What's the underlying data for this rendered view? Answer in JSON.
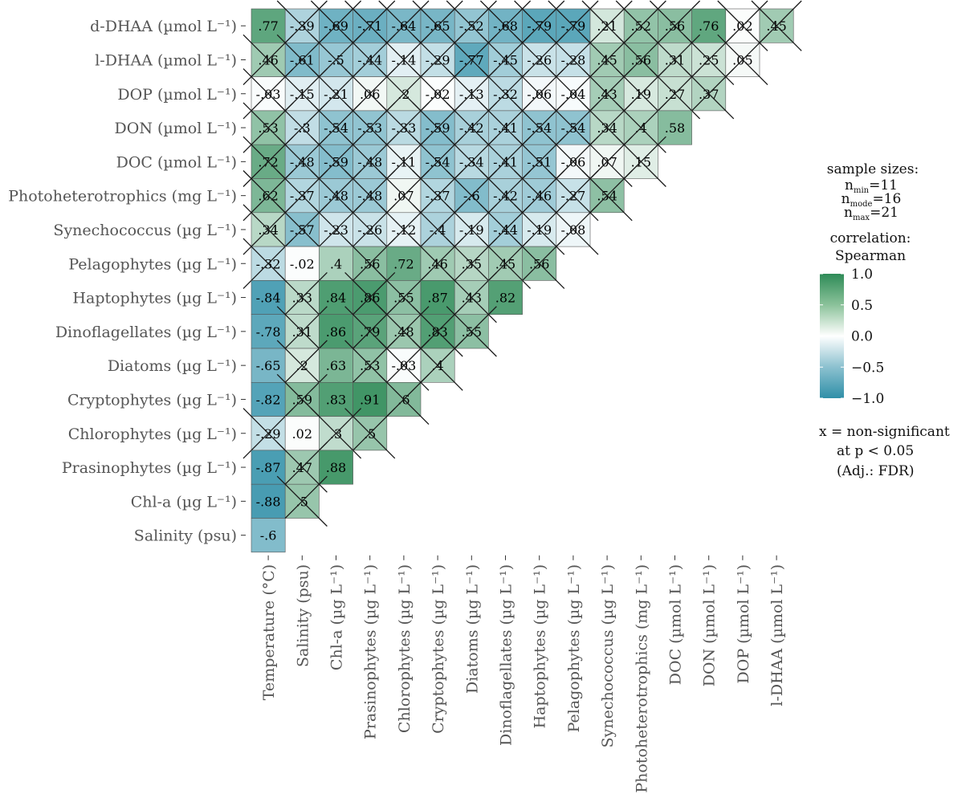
{
  "chart_data": {
    "type": "heatmap",
    "rows": [
      "d-DHAA (µmol L⁻¹)",
      "l-DHAA (µmol L⁻¹)",
      "DOP (µmol L⁻¹)",
      "DON (µmol L⁻¹)",
      "DOC (µmol L⁻¹)",
      "Photoheterotrophics (mg L⁻¹)",
      "Synechococcus (µg L⁻¹)",
      "Pelagophytes (µg L⁻¹)",
      "Haptophytes (µg L⁻¹)",
      "Dinoflagellates (µg L⁻¹)",
      "Diatoms (µg L⁻¹)",
      "Cryptophytes (µg L⁻¹)",
      "Chlorophytes (µg L⁻¹)",
      "Prasinophytes (µg L⁻¹)",
      "Chl-a (µg L⁻¹)",
      "Salinity (psu)"
    ],
    "columns": [
      "Temperature (°C)",
      "Salinity (psu)",
      "Chl-a (µg L⁻¹)",
      "Prasinophytes (µg L⁻¹)",
      "Chlorophytes (µg L⁻¹)",
      "Cryptophytes (µg L⁻¹)",
      "Diatoms (µg L⁻¹)",
      "Dinoflagellates (µg L⁻¹)",
      "Haptophytes (µg L⁻¹)",
      "Pelagophytes (µg L⁻¹)",
      "Synechococcus (µg L⁻¹)",
      "Photoheterotrophics (mg L⁻¹)",
      "DOC (µmol L⁻¹)",
      "DON (µmol L⁻¹)",
      "DOP (µmol L⁻¹)",
      "l-DHAA (µmol L⁻¹)"
    ],
    "values": [
      [
        0.77,
        -0.39,
        -0.69,
        -0.71,
        -0.64,
        -0.65,
        -0.52,
        -0.68,
        -0.79,
        -0.79,
        0.21,
        0.52,
        0.56,
        0.76,
        0.02,
        0.45
      ],
      [
        0.46,
        -0.61,
        -0.5,
        -0.44,
        -0.14,
        -0.29,
        -0.77,
        -0.45,
        -0.26,
        -0.28,
        0.45,
        0.56,
        0.31,
        0.25,
        0.05
      ],
      [
        -0.03,
        -0.15,
        -0.21,
        0.06,
        0.2,
        -0.02,
        -0.13,
        -0.32,
        -0.06,
        -0.04,
        0.43,
        0.19,
        0.27,
        0.37
      ],
      [
        0.53,
        -0.3,
        -0.54,
        -0.53,
        -0.33,
        -0.59,
        -0.42,
        -0.41,
        -0.54,
        -0.54,
        0.34,
        0.4,
        0.58
      ],
      [
        0.72,
        -0.48,
        -0.59,
        -0.48,
        -0.11,
        -0.54,
        -0.34,
        -0.41,
        -0.51,
        -0.06,
        0.07,
        0.15
      ],
      [
        0.62,
        -0.37,
        -0.48,
        -0.48,
        0.07,
        -0.37,
        -0.6,
        -0.42,
        -0.46,
        -0.27,
        0.54
      ],
      [
        0.34,
        -0.57,
        -0.23,
        -0.26,
        -0.12,
        -0.4,
        -0.19,
        -0.44,
        -0.19,
        -0.08
      ],
      [
        -0.32,
        -0.02,
        0.4,
        0.56,
        0.72,
        0.46,
        0.35,
        0.45,
        0.56
      ],
      [
        -0.84,
        0.33,
        0.84,
        0.86,
        0.55,
        0.87,
        0.43,
        0.82
      ],
      [
        -0.78,
        0.31,
        0.86,
        0.79,
        0.48,
        0.83,
        0.55
      ],
      [
        -0.65,
        0.2,
        0.63,
        0.53,
        -0.03,
        0.4
      ],
      [
        -0.82,
        0.59,
        0.83,
        0.91,
        0.6
      ],
      [
        -0.29,
        0.02,
        0.3,
        0.5
      ],
      [
        -0.87,
        0.47,
        0.88
      ],
      [
        -0.88,
        0.5
      ],
      [
        -0.6
      ]
    ],
    "significant": [
      [
        true,
        false,
        false,
        false,
        false,
        false,
        false,
        false,
        false,
        false,
        false,
        false,
        false,
        true,
        false,
        false
      ],
      [
        false,
        false,
        false,
        false,
        false,
        false,
        false,
        false,
        false,
        false,
        false,
        false,
        false,
        false,
        false
      ],
      [
        false,
        false,
        false,
        false,
        false,
        false,
        false,
        false,
        false,
        false,
        false,
        false,
        false,
        false
      ],
      [
        false,
        false,
        false,
        false,
        false,
        false,
        false,
        false,
        false,
        false,
        false,
        false,
        true
      ],
      [
        false,
        false,
        false,
        false,
        false,
        false,
        false,
        false,
        false,
        false,
        false,
        false
      ],
      [
        false,
        false,
        false,
        false,
        false,
        false,
        false,
        false,
        false,
        false,
        false
      ],
      [
        false,
        false,
        false,
        false,
        false,
        false,
        false,
        false,
        false,
        false
      ],
      [
        false,
        true,
        true,
        false,
        true,
        false,
        false,
        false,
        false
      ],
      [
        true,
        false,
        true,
        false,
        false,
        true,
        false,
        true
      ],
      [
        true,
        false,
        true,
        false,
        false,
        false,
        false
      ],
      [
        true,
        false,
        true,
        false,
        false,
        false
      ],
      [
        true,
        false,
        true,
        true,
        false
      ],
      [
        false,
        true,
        false,
        false
      ],
      [
        true,
        false,
        true
      ],
      [
        true,
        false
      ],
      [
        true
      ]
    ],
    "color_scale": {
      "min": -1.0,
      "max": 1.0,
      "low": "#2f8fa8",
      "mid": "#ffffff",
      "high": "#2e8b57",
      "ticks": [
        "1.0",
        "0.5",
        "0.0",
        "−0.5",
        "−1.0"
      ]
    }
  },
  "legend": {
    "sample_sizes_title": "sample sizes:",
    "n_min_label": "n",
    "n_min_sub": "min",
    "n_min_value": "=11",
    "n_mode_label": "n",
    "n_mode_sub": "mode",
    "n_mode_value": "=16",
    "n_max_label": "n",
    "n_max_sub": "max",
    "n_max_value": "=21",
    "correlation_title": "correlation:",
    "correlation_method": "Spearman",
    "nonsig_line1": "x = non-significant",
    "nonsig_line2": "at p < 0.05",
    "nonsig_line3": "(Adj.: FDR)"
  }
}
